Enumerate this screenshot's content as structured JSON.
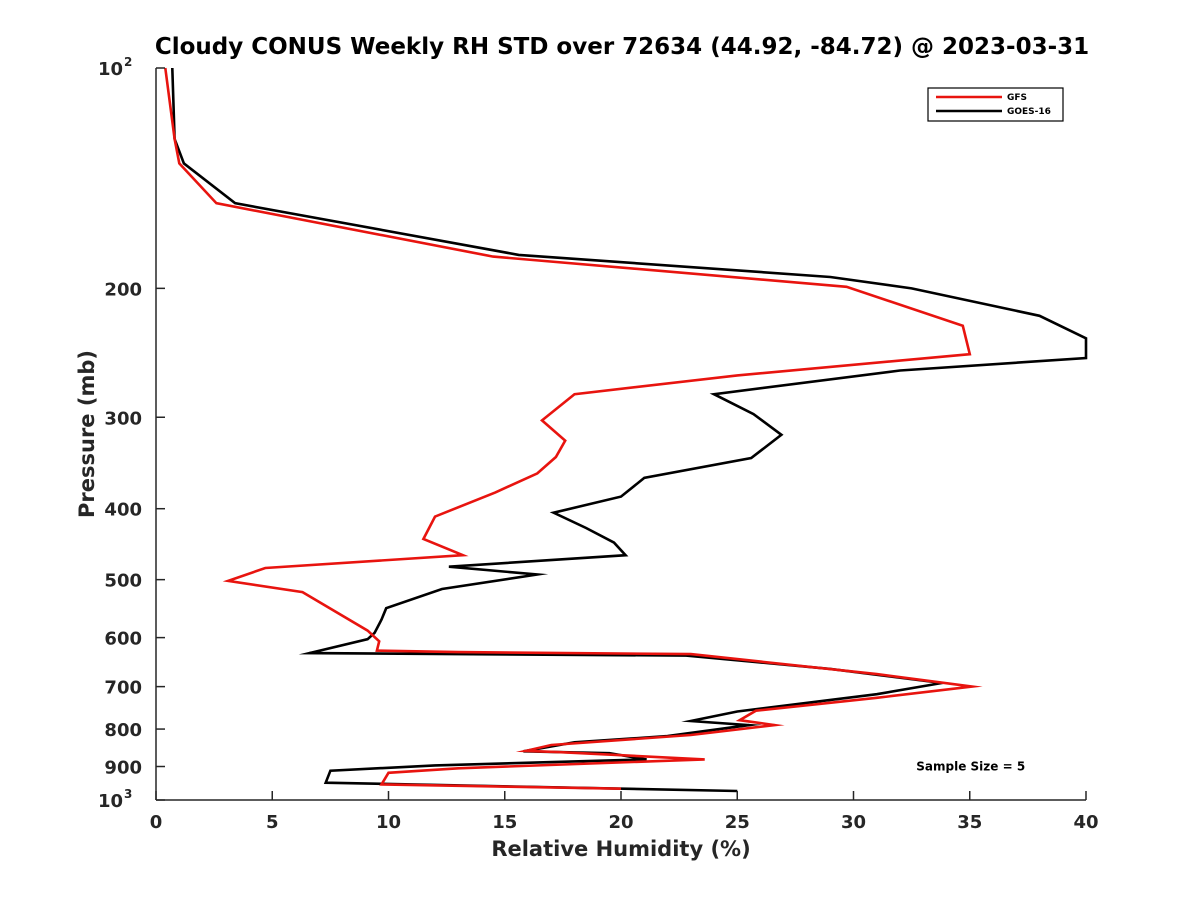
{
  "chart_data": {
    "type": "line",
    "title": "Cloudy CONUS Weekly RH STD over 72634 (44.92, -84.72) @ 2023-03-31",
    "xlabel": "Relative Humidity (%)",
    "ylabel": "Pressure (mb)",
    "xlim": [
      0,
      40
    ],
    "ylim": [
      100,
      1000
    ],
    "yscale": "log",
    "y_reversed": true,
    "grid": false,
    "legend_position": "top-right",
    "x_ticks": [
      "0",
      "5",
      "10",
      "15",
      "20",
      "25",
      "30",
      "35",
      "40"
    ],
    "y_ticks": [
      {
        "value": 100,
        "base": "10",
        "exp": "2"
      },
      {
        "value": 200,
        "label": "200"
      },
      {
        "value": 300,
        "label": "300"
      },
      {
        "value": 400,
        "label": "400"
      },
      {
        "value": 500,
        "label": "500"
      },
      {
        "value": 600,
        "label": "600"
      },
      {
        "value": 700,
        "label": "700"
      },
      {
        "value": 800,
        "label": "800"
      },
      {
        "value": 900,
        "label": "900"
      },
      {
        "value": 1000,
        "base": "10",
        "exp": "3"
      }
    ],
    "series": [
      {
        "name": "GFS",
        "color": "#e8140f",
        "points": [
          [
            0.4,
            100
          ],
          [
            0.8,
            125
          ],
          [
            1.0,
            135
          ],
          [
            2.6,
            153
          ],
          [
            14.5,
            181
          ],
          [
            29.7,
            199
          ],
          [
            34.7,
            225
          ],
          [
            35.0,
            246
          ],
          [
            25.0,
            263
          ],
          [
            18.0,
            279
          ],
          [
            16.6,
            303
          ],
          [
            17.6,
            323
          ],
          [
            17.2,
            340
          ],
          [
            16.4,
            358
          ],
          [
            14.6,
            380
          ],
          [
            12.0,
            410
          ],
          [
            11.5,
            440
          ],
          [
            13.2,
            463
          ],
          [
            4.7,
            482
          ],
          [
            3.1,
            502
          ],
          [
            6.3,
            520
          ],
          [
            9.1,
            587
          ],
          [
            9.6,
            607
          ],
          [
            9.5,
            625
          ],
          [
            13.0,
            628
          ],
          [
            23.0,
            632
          ],
          [
            31.0,
            673
          ],
          [
            35.1,
            700
          ],
          [
            31.0,
            725
          ],
          [
            25.8,
            755
          ],
          [
            25.1,
            778
          ],
          [
            26.6,
            790
          ],
          [
            23.0,
            815
          ],
          [
            17.0,
            841
          ],
          [
            15.9,
            857
          ],
          [
            17.3,
            860
          ],
          [
            23.6,
            880
          ],
          [
            13.0,
            905
          ],
          [
            10.0,
            918
          ],
          [
            9.7,
            952
          ],
          [
            20.0,
            965
          ]
        ]
      },
      {
        "name": "GOES-16",
        "color": "#000000",
        "points": [
          [
            0.7,
            100
          ],
          [
            0.8,
            125
          ],
          [
            1.2,
            135
          ],
          [
            3.4,
            153
          ],
          [
            15.6,
            180
          ],
          [
            29.0,
            193
          ],
          [
            32.5,
            200
          ],
          [
            38.0,
            218
          ],
          [
            40.0,
            234
          ],
          [
            40.0,
            249
          ],
          [
            32.0,
            259
          ],
          [
            24.0,
            279
          ],
          [
            25.7,
            297
          ],
          [
            26.9,
            317
          ],
          [
            25.6,
            341
          ],
          [
            21.0,
            363
          ],
          [
            20.0,
            385
          ],
          [
            17.1,
            405
          ],
          [
            18.5,
            425
          ],
          [
            19.7,
            445
          ],
          [
            20.2,
            463
          ],
          [
            12.6,
            480
          ],
          [
            16.4,
            492
          ],
          [
            12.3,
            515
          ],
          [
            9.9,
            547
          ],
          [
            9.7,
            567
          ],
          [
            9.4,
            591
          ],
          [
            9.1,
            603
          ],
          [
            6.6,
            630
          ],
          [
            22.8,
            635
          ],
          [
            29.0,
            662
          ],
          [
            33.8,
            692
          ],
          [
            31.0,
            717
          ],
          [
            25.0,
            757
          ],
          [
            23.0,
            780
          ],
          [
            25.5,
            790
          ],
          [
            22.0,
            818
          ],
          [
            18.0,
            834
          ],
          [
            15.8,
            858
          ],
          [
            19.5,
            863
          ],
          [
            21.1,
            880
          ],
          [
            12.0,
            897
          ],
          [
            7.5,
            912
          ],
          [
            7.3,
            947
          ],
          [
            25.0,
            972
          ]
        ]
      }
    ],
    "annotations": [
      {
        "text": "Sample Size = 5",
        "x": 32.7,
        "y": 900
      }
    ]
  }
}
